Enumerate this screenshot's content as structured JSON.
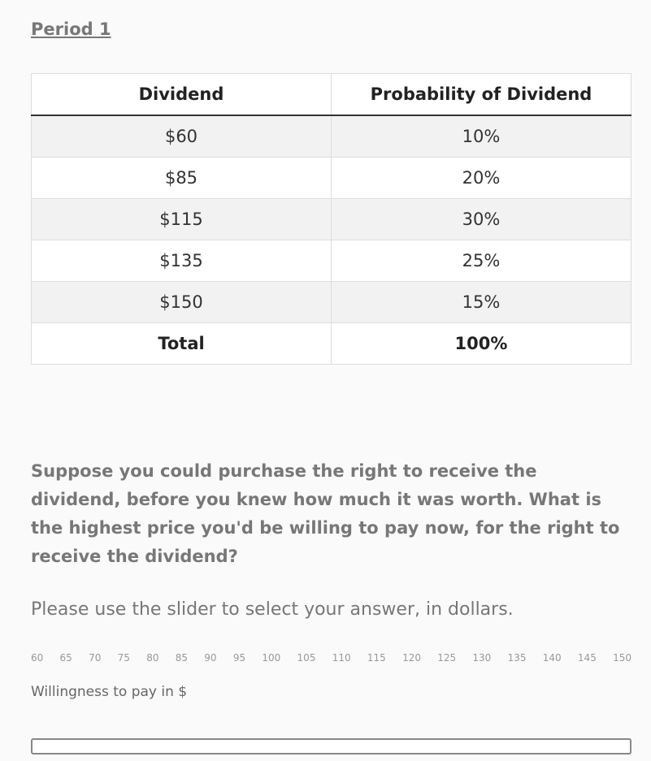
{
  "header": {
    "title": "Period 1"
  },
  "table": {
    "columns": [
      "Dividend",
      "Probability of Dividend"
    ],
    "rows": [
      [
        "$60",
        "10%"
      ],
      [
        "$85",
        "20%"
      ],
      [
        "$115",
        "30%"
      ],
      [
        "$135",
        "25%"
      ],
      [
        "$150",
        "15%"
      ]
    ],
    "total": [
      "Total",
      "100%"
    ]
  },
  "question": {
    "text": "Suppose you could purchase the right to receive the dividend, before you knew how much it was worth. What is the highest price you'd be willing to pay now, for the right to receive the dividend?",
    "instruction": "Please use the slider to select your answer, in dollars."
  },
  "slider": {
    "ticks": [
      "60",
      "65",
      "70",
      "75",
      "80",
      "85",
      "90",
      "95",
      "100",
      "105",
      "110",
      "115",
      "120",
      "125",
      "130",
      "135",
      "140",
      "145",
      "150"
    ],
    "label": "Willingness to pay in $"
  }
}
